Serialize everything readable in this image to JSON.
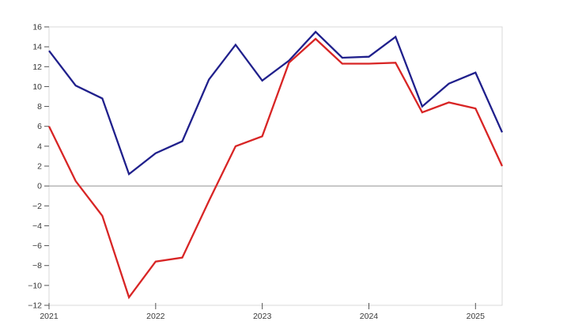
{
  "chart_data": {
    "type": "line",
    "title": "",
    "xlabel": "",
    "ylabel": "",
    "categories": [
      "2021-Q1",
      "2021-Q2",
      "2021-Q3",
      "2021-Q4",
      "2022-Q1",
      "2022-Q2",
      "2022-Q3",
      "2022-Q4",
      "2023-Q1",
      "2023-Q2",
      "2023-Q3",
      "2023-Q4",
      "2024-Q1",
      "2024-Q2",
      "2024-Q3",
      "2024-Q4",
      "2025-Q1",
      "2025-Q2"
    ],
    "series": [
      {
        "name": "navy-series",
        "color": "#20208c",
        "values": [
          13.6,
          10.1,
          8.8,
          1.2,
          3.3,
          4.5,
          10.7,
          14.2,
          10.6,
          12.6,
          15.5,
          12.9,
          13.0,
          15.0,
          8.0,
          10.3,
          11.4,
          5.4
        ]
      },
      {
        "name": "red-series",
        "color": "#d82525",
        "values": [
          6.0,
          0.5,
          -3.0,
          -11.2,
          -7.6,
          -7.2,
          -1.5,
          4.0,
          5.0,
          12.4,
          14.8,
          12.3,
          12.3,
          12.4,
          7.4,
          8.4,
          7.8,
          2.0
        ]
      }
    ],
    "ylim": [
      -12,
      16
    ],
    "y_tick_values": [
      16,
      14,
      12,
      10,
      8,
      6,
      4,
      2,
      0,
      -2,
      -4,
      -6,
      -8,
      -10,
      -12
    ],
    "y_tick_labels": [
      "16",
      "14",
      "12",
      "10",
      "8",
      "6",
      "4",
      "2",
      "0",
      "−2",
      "−4",
      "−6",
      "−8",
      "−10",
      "−12"
    ],
    "x_ticks": [
      {
        "label": "2021",
        "q_index": 0
      },
      {
        "label": "2022",
        "q_index": 4
      },
      {
        "label": "2023",
        "q_index": 8
      },
      {
        "label": "2024",
        "q_index": 12
      },
      {
        "label": "2025",
        "q_index": 16
      }
    ],
    "zero_line": true,
    "grid": false,
    "legend": "none",
    "colors": {
      "background": "#ffffff",
      "plot_border": "#d9d9d9",
      "zero_line": "#909090",
      "tick_mark": "#555555",
      "tick_label": "#3a3a3a"
    }
  }
}
